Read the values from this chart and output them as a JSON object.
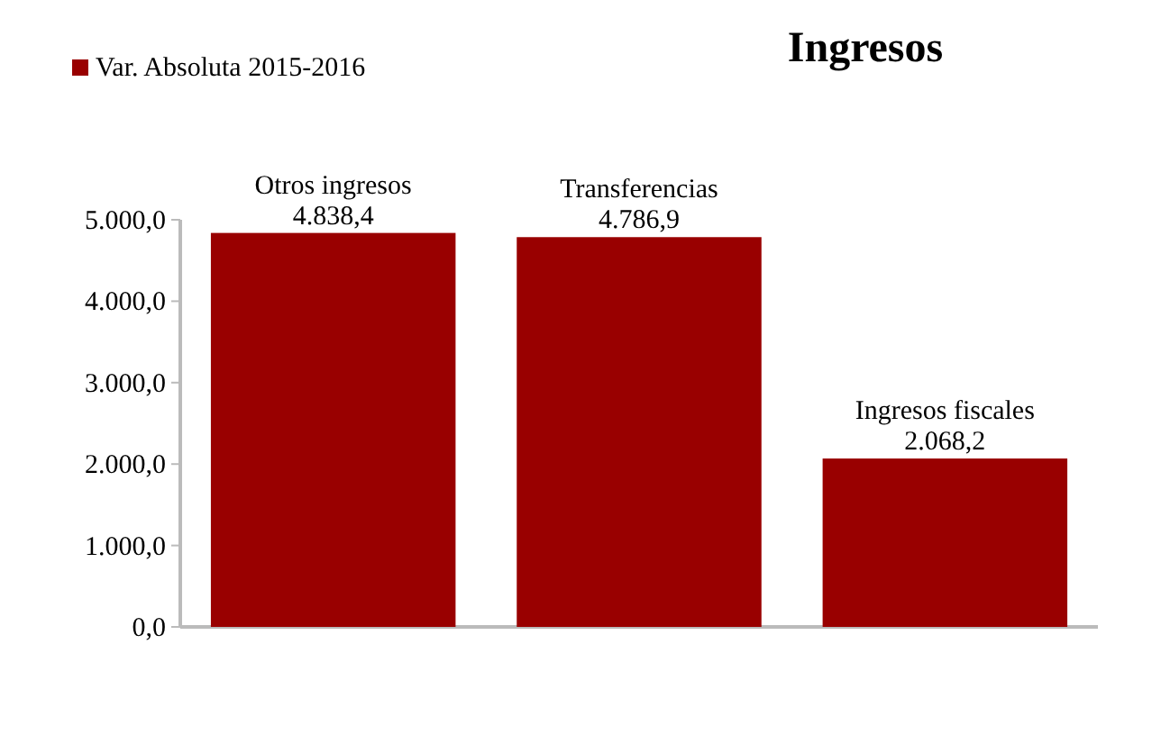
{
  "chart_data": {
    "type": "bar",
    "title": "Ingresos",
    "categories": [
      "Otros ingresos",
      "Transferencias",
      "Ingresos fiscales"
    ],
    "series": [
      {
        "name": "Var. Absoluta 2015-2016",
        "color": "#990000",
        "values": [
          4838.4,
          4786.9,
          2068.2
        ],
        "value_labels": [
          "4.838,4",
          "4.786,9",
          "2.068,2"
        ]
      }
    ],
    "ylim": [
      0,
      5000
    ],
    "yticks": [
      {
        "value": 0,
        "label": "0,0"
      },
      {
        "value": 1000,
        "label": "1.000,0"
      },
      {
        "value": 2000,
        "label": "2.000,0"
      },
      {
        "value": 3000,
        "label": "3.000,0"
      },
      {
        "value": 4000,
        "label": "4.000,0"
      },
      {
        "value": 5000,
        "label": "5.000,0"
      }
    ],
    "grid": false,
    "legend": "top left"
  }
}
